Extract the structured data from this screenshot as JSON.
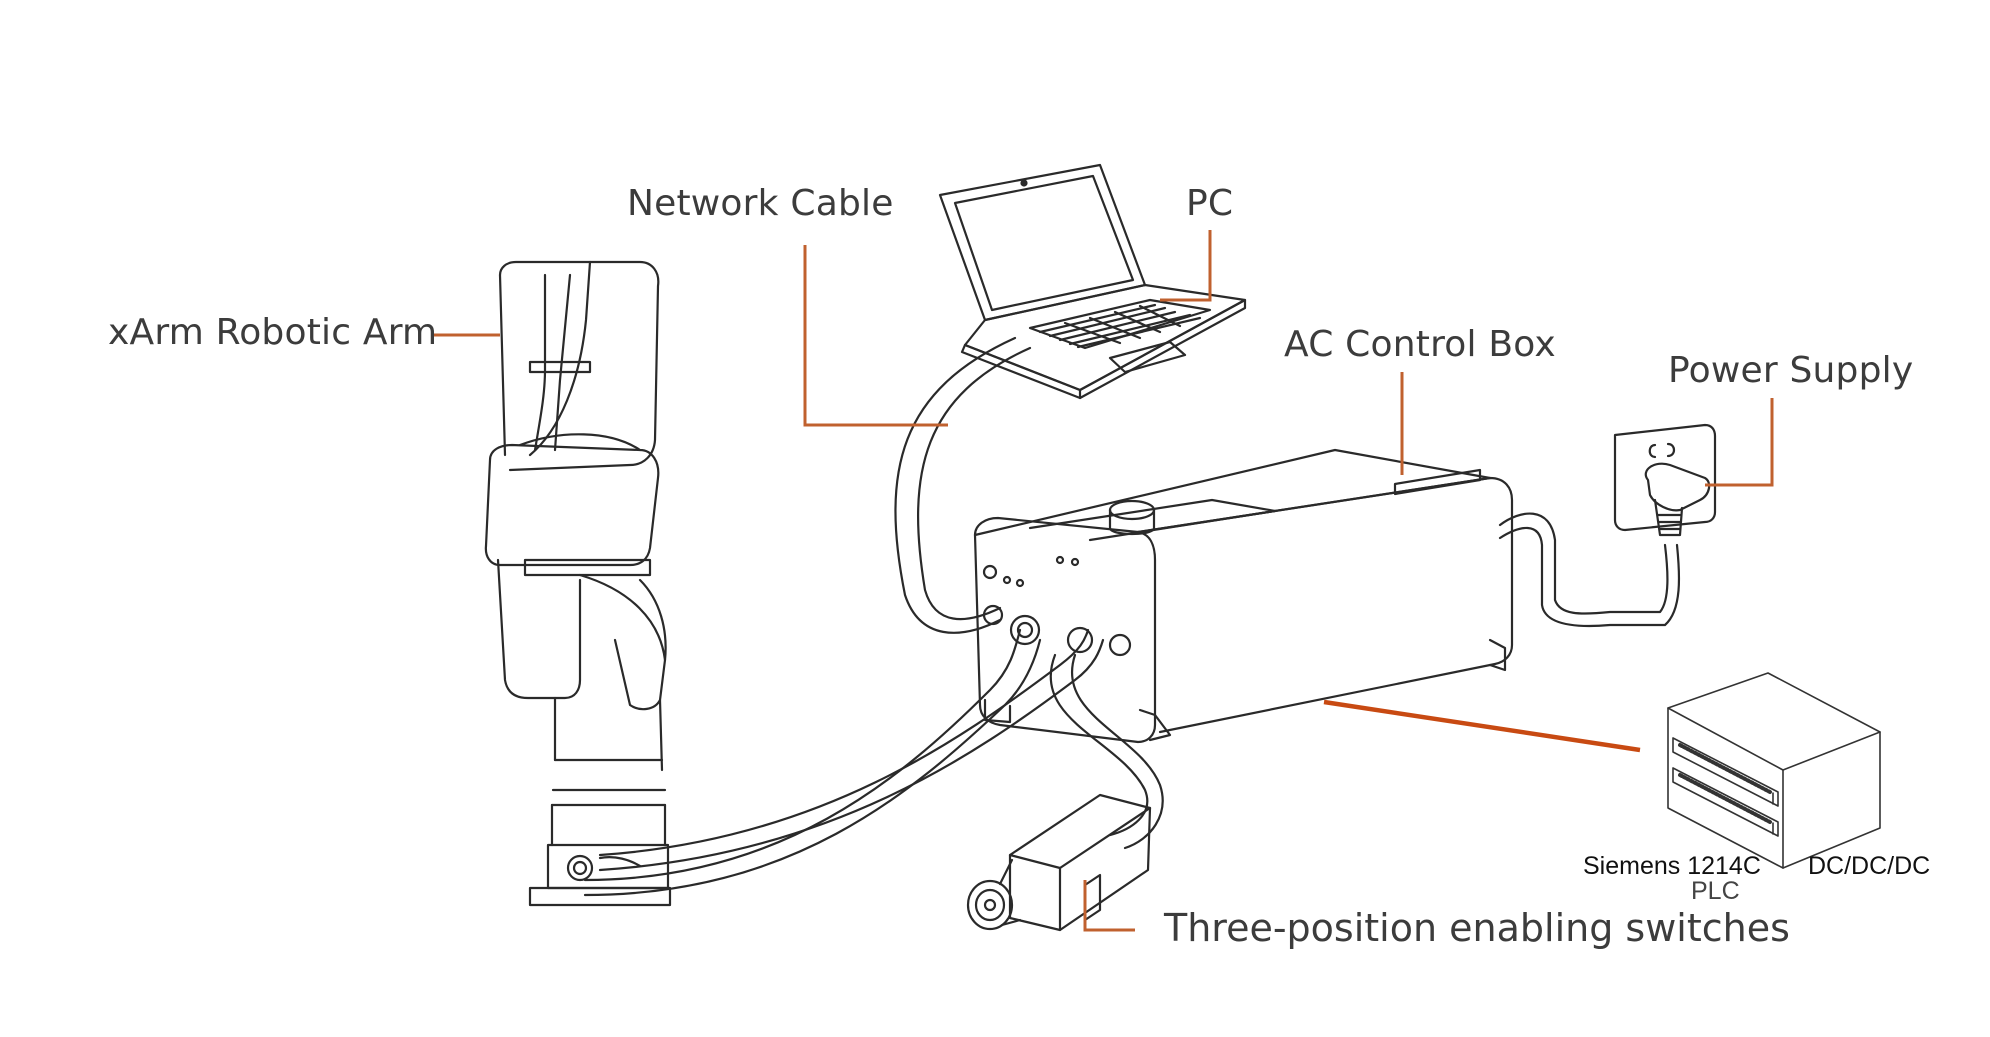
{
  "labels": {
    "robotic_arm": "xArm Robotic Arm",
    "network_cable": "Network Cable",
    "pc": "PC",
    "control_box": "AC Control Box",
    "power_supply": "Power Supply",
    "enabling_switch": "Three-position enabling switches",
    "plc_model": "Siemens 1214C",
    "plc_type": "DC/DC/DC",
    "plc_word": "PLC"
  },
  "colors": {
    "leader_line": "#c0612f",
    "plc_line": "#c84a12",
    "outline": "#2a2a2a",
    "label_text": "#3c3c3c"
  }
}
